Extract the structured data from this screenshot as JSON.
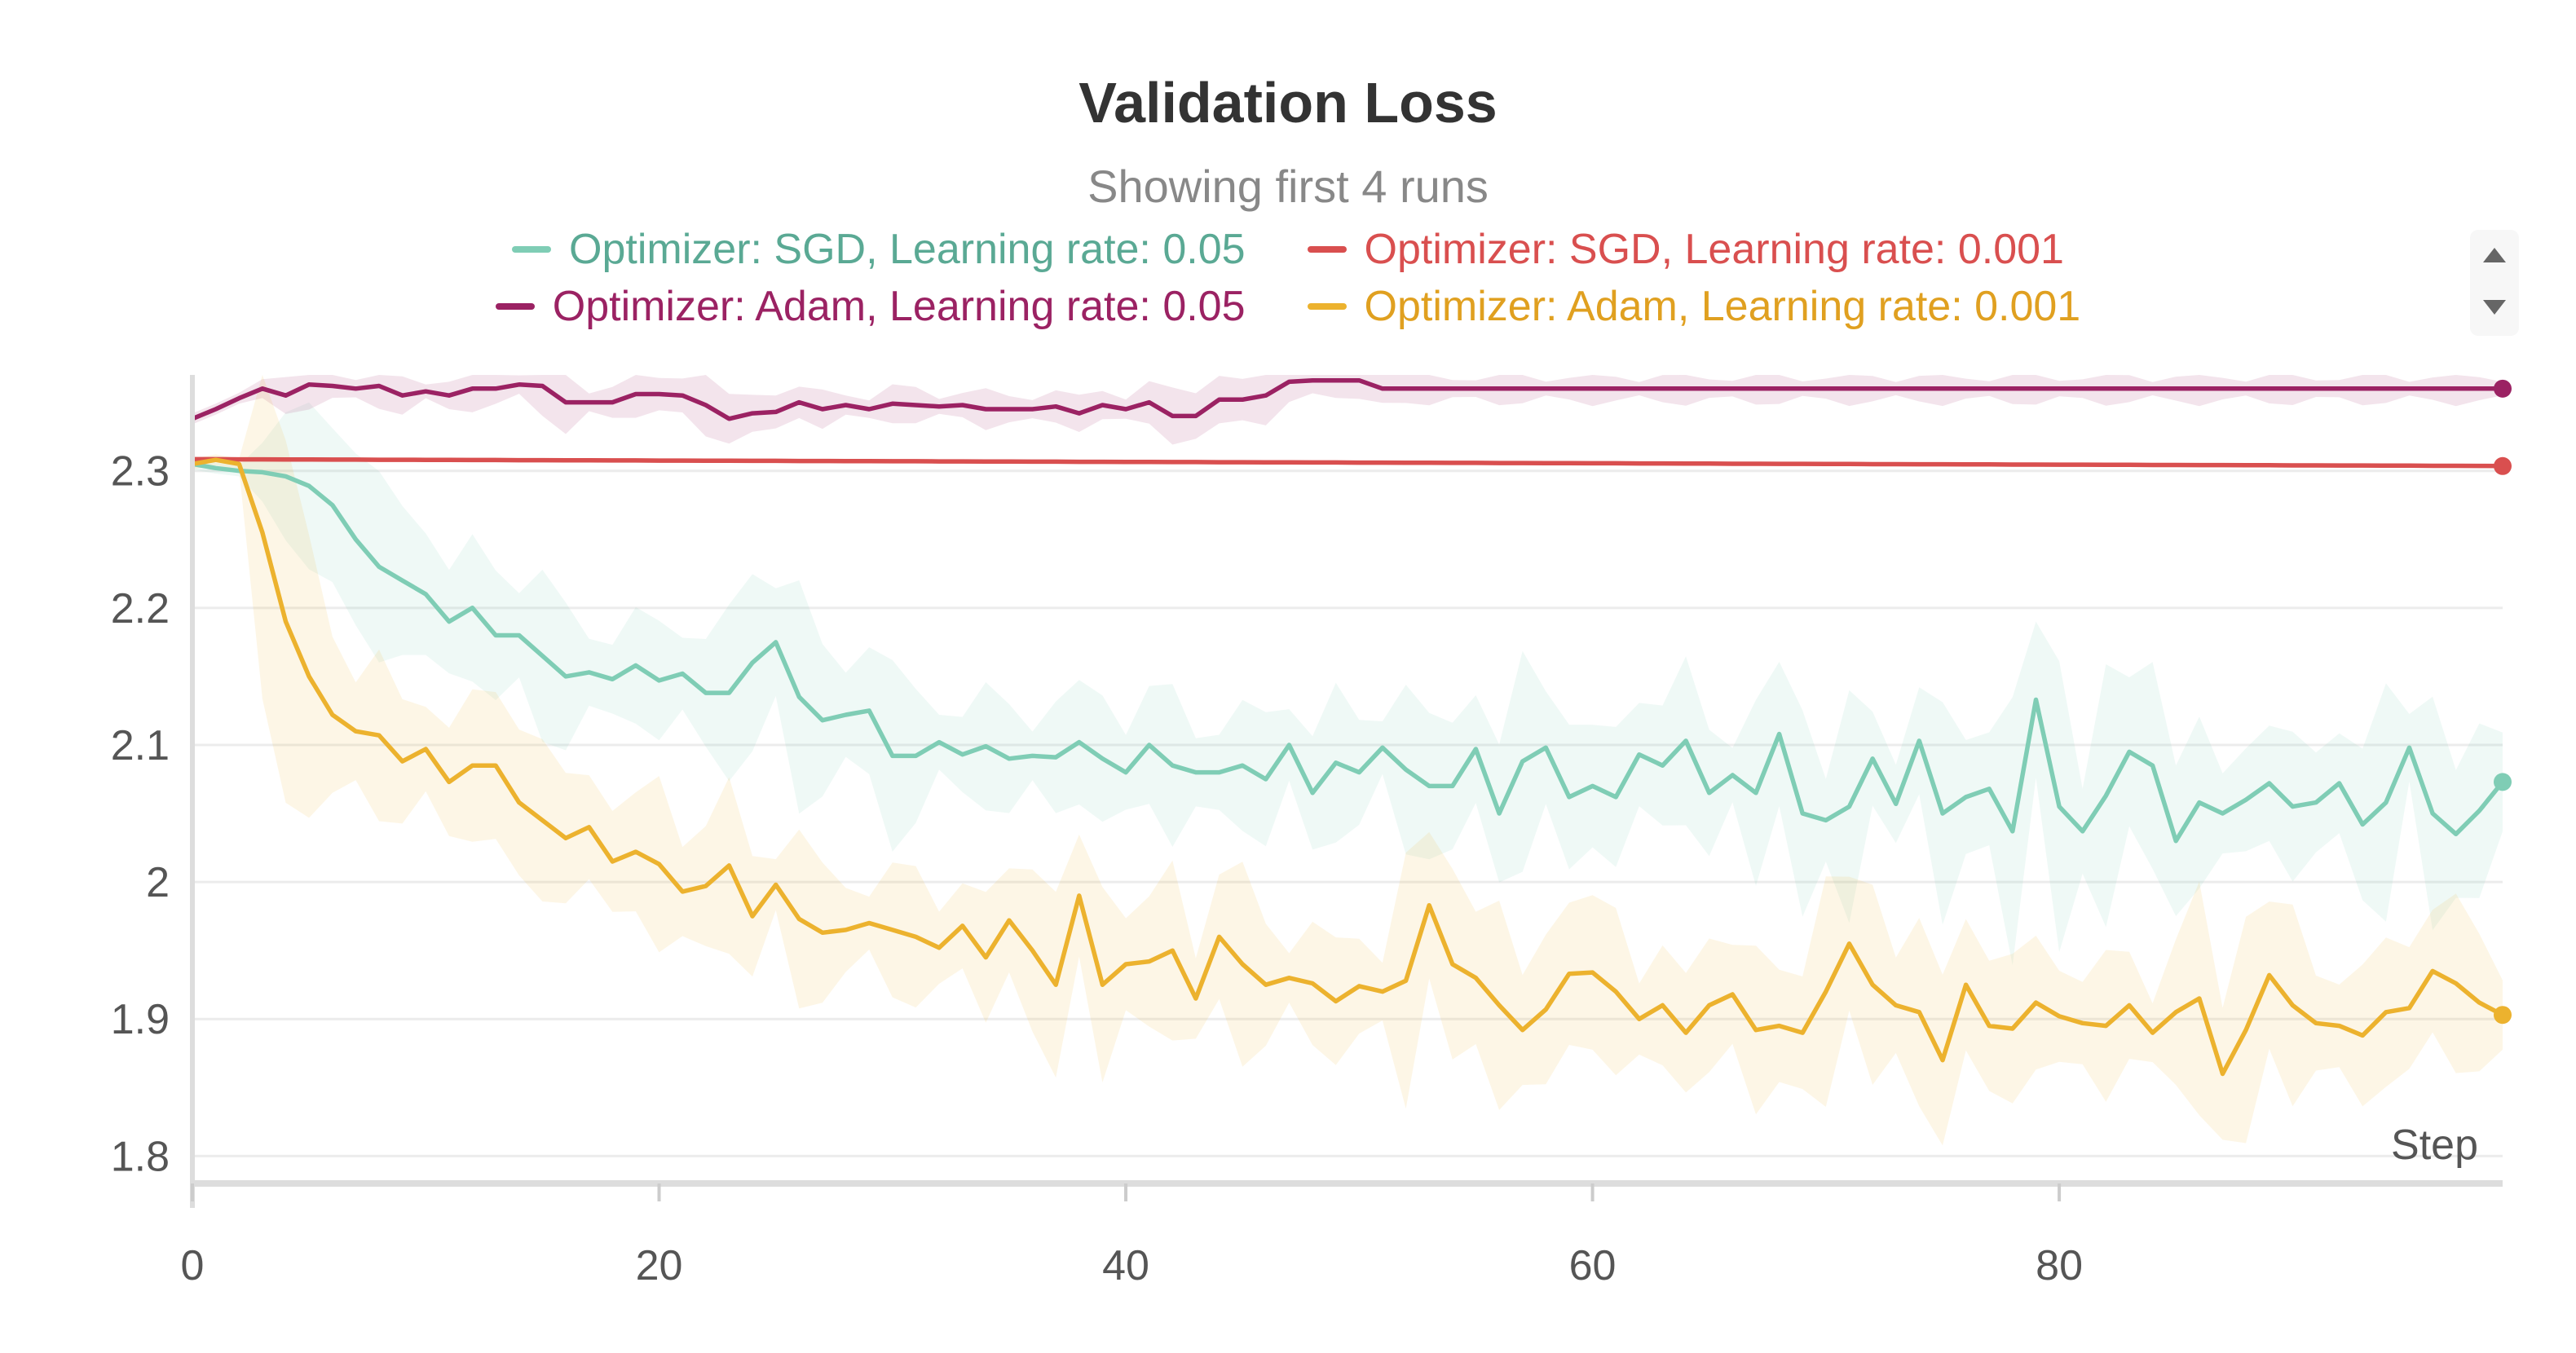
{
  "chart_data": {
    "type": "line",
    "title": "Validation Loss",
    "subtitle": "Showing first 4 runs",
    "xlabel": "Step",
    "ylabel": "",
    "xlim": [
      0,
      99
    ],
    "ylim": [
      1.78,
      2.37
    ],
    "x_ticks": [
      0,
      20,
      40,
      60,
      80
    ],
    "y_ticks": [
      1.8,
      1.9,
      2,
      2.1,
      2.2,
      2.3
    ],
    "y_tick_labels": [
      "1.8",
      "1.9",
      "2",
      "2.1",
      "2.2",
      "2.3"
    ],
    "grid": true,
    "legend_position": "top",
    "series": [
      {
        "name": "Optimizer: SGD, Learning rate: 0.05",
        "color": "#7fcdb5",
        "band": true,
        "values": [
          2.305,
          2.302,
          2.3,
          2.299,
          2.296,
          2.289,
          2.275,
          2.25,
          2.23,
          2.22,
          2.21,
          2.19,
          2.2,
          2.18,
          2.18,
          2.165,
          2.15,
          2.153,
          2.148,
          2.158,
          2.147,
          2.152,
          2.138,
          2.138,
          2.16,
          2.175,
          2.135,
          2.118,
          2.122,
          2.125,
          2.092,
          2.092,
          2.102,
          2.093,
          2.099,
          2.09,
          2.092,
          2.091,
          2.102,
          2.09,
          2.08,
          2.1,
          2.085,
          2.08,
          2.08,
          2.085,
          2.075,
          2.1,
          2.065,
          2.087,
          2.08,
          2.098,
          2.082,
          2.07,
          2.07,
          2.097,
          2.05,
          2.088,
          2.098,
          2.062,
          2.07,
          2.062,
          2.093,
          2.085,
          2.103,
          2.065,
          2.078,
          2.065,
          2.108,
          2.05,
          2.045,
          2.055,
          2.09,
          2.057,
          2.103,
          2.05,
          2.062,
          2.068,
          2.037,
          2.133,
          2.055,
          2.037,
          2.063,
          2.095,
          2.085,
          2.03,
          2.058,
          2.05,
          2.06,
          2.072,
          2.055,
          2.058,
          2.072,
          2.042,
          2.058,
          2.098,
          2.05,
          2.035,
          2.052,
          2.073
        ]
      },
      {
        "name": "Optimizer: SGD, Learning rate: 0.001",
        "color": "#d94f4f",
        "band": false,
        "values": [
          2.3085,
          2.3085,
          2.3084,
          2.3084,
          2.3083,
          2.3083,
          2.3082,
          2.3082,
          2.3081,
          2.3081,
          2.308,
          2.308,
          2.3079,
          2.3079,
          2.3078,
          2.3078,
          2.3077,
          2.3077,
          2.3076,
          2.3076,
          2.3075,
          2.3075,
          2.3074,
          2.3074,
          2.3073,
          2.3073,
          2.3072,
          2.3072,
          2.3071,
          2.3071,
          2.307,
          2.307,
          2.3069,
          2.3069,
          2.3068,
          2.3068,
          2.3067,
          2.3067,
          2.3066,
          2.3066,
          2.3065,
          2.3065,
          2.3064,
          2.3064,
          2.3063,
          2.3063,
          2.3062,
          2.3062,
          2.3061,
          2.3061,
          2.306,
          2.306,
          2.3059,
          2.3059,
          2.3058,
          2.3058,
          2.3057,
          2.3057,
          2.3056,
          2.3056,
          2.3055,
          2.3055,
          2.3054,
          2.3054,
          2.3053,
          2.3053,
          2.3052,
          2.3052,
          2.3051,
          2.3051,
          2.305,
          2.305,
          2.3049,
          2.3049,
          2.3048,
          2.3048,
          2.3047,
          2.3047,
          2.3046,
          2.3046,
          2.3045,
          2.3045,
          2.3044,
          2.3044,
          2.3043,
          2.3043,
          2.3042,
          2.3042,
          2.3041,
          2.3041,
          2.304,
          2.304,
          2.3039,
          2.3039,
          2.3038,
          2.3038,
          2.3037,
          2.3037,
          2.3036,
          2.3035
        ]
      },
      {
        "name": "Optimizer: Adam, Learning rate: 0.05",
        "color": "#9b2263",
        "band": true,
        "values": [
          2.338,
          2.345,
          2.353,
          2.36,
          2.355,
          2.363,
          2.362,
          2.36,
          2.362,
          2.355,
          2.358,
          2.355,
          2.36,
          2.36,
          2.363,
          2.362,
          2.35,
          2.35,
          2.35,
          2.356,
          2.356,
          2.355,
          2.348,
          2.338,
          2.342,
          2.343,
          2.35,
          2.345,
          2.348,
          2.345,
          2.349,
          2.348,
          2.347,
          2.348,
          2.345,
          2.345,
          2.345,
          2.347,
          2.342,
          2.348,
          2.345,
          2.35,
          2.34,
          2.34,
          2.352,
          2.352,
          2.355,
          2.365,
          2.366,
          2.366,
          2.366,
          2.36,
          2.36,
          2.36,
          2.36,
          2.36,
          2.36,
          2.36,
          2.36,
          2.36,
          2.36,
          2.36,
          2.36,
          2.36,
          2.36,
          2.36,
          2.36,
          2.36,
          2.36,
          2.36,
          2.36,
          2.36,
          2.36,
          2.36,
          2.36,
          2.36,
          2.36,
          2.36,
          2.36,
          2.36,
          2.36,
          2.36,
          2.36,
          2.36,
          2.36,
          2.36,
          2.36,
          2.36,
          2.36,
          2.36,
          2.36,
          2.36,
          2.36,
          2.36,
          2.36,
          2.36,
          2.36,
          2.36,
          2.36,
          2.36
        ]
      },
      {
        "name": "Optimizer: Adam, Learning rate: 0.001",
        "color": "#ecb22e",
        "band": true,
        "values": [
          2.305,
          2.308,
          2.305,
          2.255,
          2.19,
          2.15,
          2.122,
          2.11,
          2.107,
          2.088,
          2.097,
          2.073,
          2.085,
          2.085,
          2.058,
          2.045,
          2.032,
          2.04,
          2.015,
          2.022,
          2.013,
          1.993,
          1.997,
          2.012,
          1.975,
          1.998,
          1.973,
          1.963,
          1.965,
          1.97,
          1.965,
          1.96,
          1.952,
          1.968,
          1.945,
          1.972,
          1.95,
          1.925,
          1.99,
          1.925,
          1.94,
          1.942,
          1.95,
          1.915,
          1.96,
          1.94,
          1.925,
          1.93,
          1.926,
          1.913,
          1.924,
          1.92,
          1.928,
          1.983,
          1.94,
          1.93,
          1.91,
          1.892,
          1.907,
          1.933,
          1.934,
          1.92,
          1.9,
          1.91,
          1.89,
          1.91,
          1.918,
          1.892,
          1.895,
          1.89,
          1.92,
          1.955,
          1.925,
          1.91,
          1.905,
          1.87,
          1.925,
          1.895,
          1.893,
          1.912,
          1.902,
          1.897,
          1.895,
          1.91,
          1.89,
          1.905,
          1.915,
          1.86,
          1.892,
          1.932,
          1.91,
          1.897,
          1.895,
          1.888,
          1.905,
          1.908,
          1.935,
          1.926,
          1.912,
          1.903
        ]
      }
    ]
  }
}
